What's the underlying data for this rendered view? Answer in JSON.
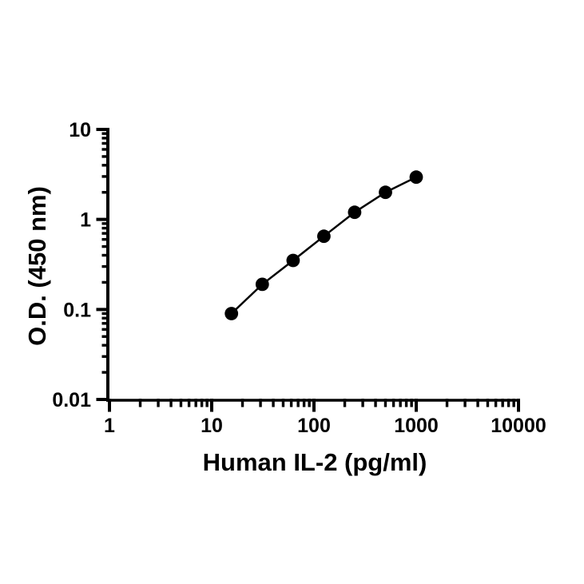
{
  "figure": {
    "background": "#ffffff",
    "foreground": "#000000"
  },
  "chart_data": {
    "type": "line",
    "subtype": "scatter-with-connecting-line",
    "title": "",
    "xlabel": "Human IL-2 (pg/ml)",
    "ylabel": "O.D. (450 nm)",
    "x_scale": "log",
    "y_scale": "log",
    "xlim": [
      1,
      10000
    ],
    "ylim": [
      0.01,
      10
    ],
    "x_ticks": [
      1,
      10,
      100,
      1000,
      10000
    ],
    "x_tick_labels": [
      "1",
      "10",
      "100",
      "1000",
      "10000"
    ],
    "y_ticks": [
      0.01,
      0.1,
      1,
      10
    ],
    "y_tick_labels": [
      "0.01",
      "0.1",
      "1",
      "10"
    ],
    "minor_ticks": "log-2-through-9",
    "grid": false,
    "legend": false,
    "axis_color": "#000000",
    "tick_direction": "out",
    "series": [
      {
        "x": [
          15.6,
          31.25,
          62.5,
          125,
          250,
          500,
          1000
        ],
        "y": [
          0.09,
          0.19,
          0.35,
          0.65,
          1.2,
          2.0,
          2.95
        ],
        "marker": "filled-circle",
        "marker_color": "#000000",
        "line_color": "#000000"
      }
    ]
  }
}
